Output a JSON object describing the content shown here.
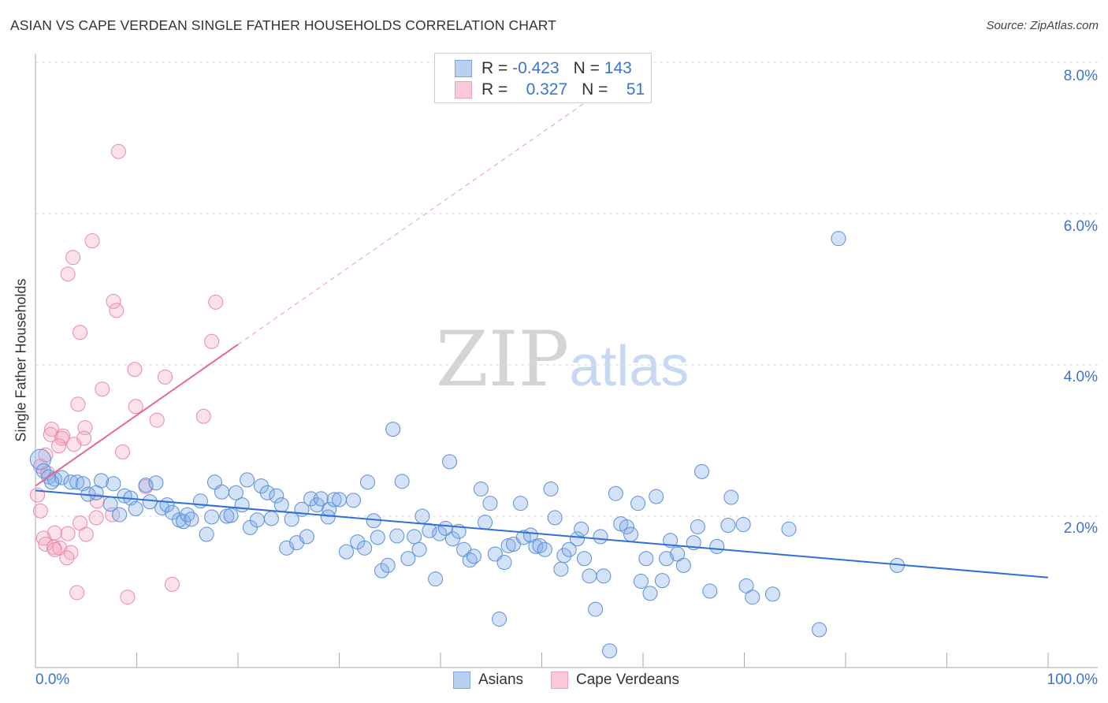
{
  "title": "ASIAN VS CAPE VERDEAN SINGLE FATHER HOUSEHOLDS CORRELATION CHART",
  "source": "Source: ZipAtlas.com",
  "watermark": {
    "zip": "ZIP",
    "atlas": "atlas"
  },
  "colors": {
    "asians": "#5b8fd9",
    "cape_verdeans": "#e98aa8",
    "asians_line": "#2f6fd6",
    "cape_line": "#e8688f",
    "tick": "#3b73d4"
  },
  "legend": {
    "rows": [
      {
        "r_label": "R =",
        "r": "-0.423",
        "n_label": "N =",
        "n": "143"
      },
      {
        "r_label": "R =",
        "r": "0.327",
        "n_label": "N =",
        "n": "51"
      }
    ],
    "bottom": [
      "Asians",
      "Cape Verdeans"
    ]
  },
  "chart_data": {
    "type": "scatter",
    "title": "ASIAN VS CAPE VERDEAN SINGLE FATHER HOUSEHOLDS CORRELATION CHART",
    "xlabel": "",
    "ylabel": "Single Father Households",
    "xlim": [
      0,
      100
    ],
    "ylim": [
      0,
      8.2
    ],
    "x_tick_labels": [
      "0.0%",
      "100.0%"
    ],
    "y_ticks": [
      2,
      4,
      6,
      8
    ],
    "y_tick_labels": [
      "2.0%",
      "4.0%",
      "6.0%",
      "8.0%"
    ],
    "grid": true,
    "legend_position": "top-center",
    "series": [
      {
        "name": "Asians",
        "r": -0.423,
        "n": 143,
        "trend": {
          "x": [
            0,
            100
          ],
          "y": [
            2.34,
            1.19
          ]
        },
        "points": [
          [
            0.5,
            2.75
          ],
          [
            0.8,
            2.6
          ],
          [
            1.3,
            2.52
          ],
          [
            1.9,
            2.49
          ],
          [
            2.6,
            2.51
          ],
          [
            1.6,
            2.45
          ],
          [
            3.5,
            2.45
          ],
          [
            4.1,
            2.45
          ],
          [
            4.7,
            2.43
          ],
          [
            6.5,
            2.47
          ],
          [
            5.2,
            2.29
          ],
          [
            6.0,
            2.31
          ],
          [
            7.7,
            2.43
          ],
          [
            7.4,
            2.16
          ],
          [
            8.3,
            2.02
          ],
          [
            8.8,
            2.27
          ],
          [
            9.4,
            2.24
          ],
          [
            9.9,
            2.1
          ],
          [
            10.9,
            2.41
          ],
          [
            11.3,
            2.19
          ],
          [
            11.9,
            2.44
          ],
          [
            12.5,
            2.11
          ],
          [
            13.0,
            2.15
          ],
          [
            13.5,
            2.05
          ],
          [
            14.2,
            1.95
          ],
          [
            14.6,
            1.93
          ],
          [
            15.0,
            2.02
          ],
          [
            15.4,
            1.96
          ],
          [
            16.3,
            2.2
          ],
          [
            16.9,
            1.76
          ],
          [
            17.4,
            1.99
          ],
          [
            17.7,
            2.45
          ],
          [
            18.4,
            2.32
          ],
          [
            18.9,
            2.0
          ],
          [
            19.3,
            2.01
          ],
          [
            19.8,
            2.31
          ],
          [
            20.4,
            2.15
          ],
          [
            20.9,
            2.48
          ],
          [
            21.2,
            1.85
          ],
          [
            21.9,
            1.95
          ],
          [
            22.3,
            2.4
          ],
          [
            22.9,
            2.31
          ],
          [
            23.3,
            1.97
          ],
          [
            23.8,
            2.27
          ],
          [
            24.3,
            2.15
          ],
          [
            24.8,
            1.58
          ],
          [
            25.3,
            1.96
          ],
          [
            25.8,
            1.65
          ],
          [
            26.3,
            2.09
          ],
          [
            26.8,
            1.73
          ],
          [
            27.2,
            2.23
          ],
          [
            27.8,
            2.15
          ],
          [
            28.2,
            2.23
          ],
          [
            28.9,
            1.99
          ],
          [
            29.0,
            2.09
          ],
          [
            29.5,
            2.22
          ],
          [
            30.0,
            2.22
          ],
          [
            30.7,
            1.53
          ],
          [
            31.4,
            2.21
          ],
          [
            31.8,
            1.66
          ],
          [
            32.5,
            1.58
          ],
          [
            32.8,
            2.45
          ],
          [
            33.4,
            1.94
          ],
          [
            33.8,
            1.72
          ],
          [
            34.2,
            1.28
          ],
          [
            34.8,
            1.35
          ],
          [
            35.3,
            3.15
          ],
          [
            35.7,
            1.74
          ],
          [
            36.2,
            2.46
          ],
          [
            36.8,
            1.44
          ],
          [
            37.4,
            1.73
          ],
          [
            37.9,
            1.56
          ],
          [
            38.2,
            2.0
          ],
          [
            38.9,
            1.81
          ],
          [
            39.5,
            1.17
          ],
          [
            39.9,
            1.77
          ],
          [
            40.5,
            1.84
          ],
          [
            40.9,
            2.72
          ],
          [
            41.2,
            1.7
          ],
          [
            41.8,
            1.8
          ],
          [
            42.3,
            1.56
          ],
          [
            42.9,
            1.42
          ],
          [
            43.3,
            1.47
          ],
          [
            44.0,
            2.36
          ],
          [
            44.4,
            1.92
          ],
          [
            44.9,
            2.17
          ],
          [
            45.4,
            1.5
          ],
          [
            45.8,
            0.64
          ],
          [
            46.3,
            1.39
          ],
          [
            46.7,
            1.61
          ],
          [
            47.2,
            1.63
          ],
          [
            47.9,
            2.17
          ],
          [
            48.2,
            1.72
          ],
          [
            48.9,
            1.75
          ],
          [
            49.4,
            1.6
          ],
          [
            49.8,
            1.61
          ],
          [
            50.3,
            1.56
          ],
          [
            50.9,
            2.36
          ],
          [
            51.3,
            1.98
          ],
          [
            51.9,
            1.3
          ],
          [
            52.2,
            1.48
          ],
          [
            52.7,
            1.56
          ],
          [
            53.5,
            1.7
          ],
          [
            53.9,
            1.83
          ],
          [
            54.2,
            1.44
          ],
          [
            54.7,
            1.21
          ],
          [
            55.3,
            0.77
          ],
          [
            55.8,
            1.73
          ],
          [
            56.1,
            1.21
          ],
          [
            56.7,
            0.22
          ],
          [
            57.3,
            2.3
          ],
          [
            57.8,
            1.9
          ],
          [
            58.4,
            1.86
          ],
          [
            58.8,
            1.76
          ],
          [
            59.5,
            2.17
          ],
          [
            59.8,
            1.14
          ],
          [
            60.3,
            1.44
          ],
          [
            60.7,
            0.98
          ],
          [
            61.3,
            2.26
          ],
          [
            61.9,
            1.15
          ],
          [
            62.3,
            1.44
          ],
          [
            62.7,
            1.68
          ],
          [
            63.4,
            1.5
          ],
          [
            64.0,
            1.35
          ],
          [
            65.0,
            1.65
          ],
          [
            65.4,
            1.86
          ],
          [
            65.8,
            2.59
          ],
          [
            66.6,
            1.01
          ],
          [
            67.3,
            1.6
          ],
          [
            68.4,
            1.88
          ],
          [
            68.7,
            2.25
          ],
          [
            69.9,
            1.89
          ],
          [
            70.2,
            1.08
          ],
          [
            70.8,
            0.93
          ],
          [
            72.8,
            0.97
          ],
          [
            74.4,
            1.83
          ],
          [
            77.4,
            0.5
          ],
          [
            79.3,
            5.67
          ],
          [
            85.1,
            1.35
          ]
        ]
      },
      {
        "name": "Cape Verdeans",
        "r": 0.327,
        "n": 51,
        "trend": {
          "x": [
            0,
            20
          ],
          "y": [
            2.4,
            4.27
          ]
        },
        "trend_extension": {
          "x": [
            20,
            60
          ],
          "y": [
            4.27,
            8.0
          ]
        },
        "points": [
          [
            8.2,
            6.82
          ],
          [
            5.6,
            5.64
          ],
          [
            3.7,
            5.42
          ],
          [
            3.2,
            5.2
          ],
          [
            7.7,
            4.84
          ],
          [
            17.8,
            4.83
          ],
          [
            8.0,
            4.72
          ],
          [
            4.4,
            4.43
          ],
          [
            17.4,
            4.31
          ],
          [
            9.8,
            3.94
          ],
          [
            12.8,
            3.84
          ],
          [
            6.6,
            3.68
          ],
          [
            4.2,
            3.48
          ],
          [
            9.9,
            3.45
          ],
          [
            12.0,
            3.27
          ],
          [
            16.6,
            3.32
          ],
          [
            1.6,
            3.15
          ],
          [
            4.9,
            3.17
          ],
          [
            1.5,
            3.08
          ],
          [
            2.7,
            3.06
          ],
          [
            2.6,
            3.03
          ],
          [
            4.8,
            3.03
          ],
          [
            3.8,
            2.95
          ],
          [
            2.3,
            2.93
          ],
          [
            8.6,
            2.85
          ],
          [
            1.0,
            2.81
          ],
          [
            0.5,
            2.66
          ],
          [
            1.2,
            2.57
          ],
          [
            10.9,
            2.39
          ],
          [
            0.2,
            2.28
          ],
          [
            6.1,
            2.2
          ],
          [
            0.5,
            2.07
          ],
          [
            7.6,
            2.02
          ],
          [
            6.0,
            1.98
          ],
          [
            4.4,
            1.91
          ],
          [
            1.9,
            1.78
          ],
          [
            3.2,
            1.77
          ],
          [
            0.8,
            1.71
          ],
          [
            5.0,
            1.76
          ],
          [
            1.0,
            1.63
          ],
          [
            1.8,
            1.59
          ],
          [
            2.4,
            1.58
          ],
          [
            1.9,
            1.56
          ],
          [
            3.5,
            1.52
          ],
          [
            3.1,
            1.45
          ],
          [
            4.1,
            0.99
          ],
          [
            13.5,
            1.1
          ],
          [
            9.1,
            0.93
          ]
        ]
      }
    ]
  }
}
